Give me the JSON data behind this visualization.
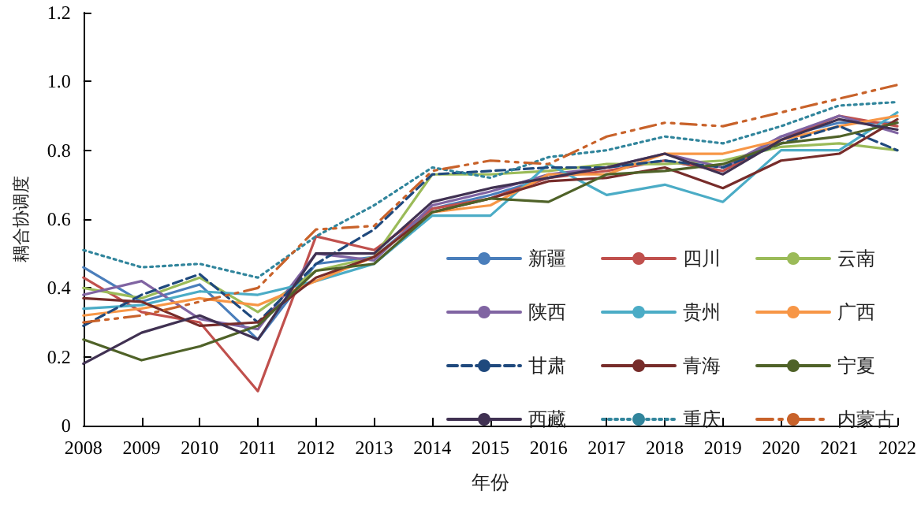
{
  "chart_data": {
    "type": "line",
    "xlabel": "年份",
    "ylabel": "耦合协调度",
    "categories": [
      "2008",
      "2009",
      "2010",
      "2011",
      "2012",
      "2013",
      "2014",
      "2015",
      "2016",
      "2017",
      "2018",
      "2019",
      "2020",
      "2021",
      "2022"
    ],
    "ylim": [
      0,
      1.2
    ],
    "yticks": [
      0,
      0.2,
      0.4,
      0.6,
      0.8,
      {
        "value": 1,
        "label": "1.0"
      },
      1.2
    ],
    "grid": false,
    "legend": "bottom right",
    "marker": "none",
    "series": [
      {
        "name": "新疆",
        "color": "#4a7ebb",
        "line_style": "solid",
        "values": [
          0.46,
          0.36,
          0.41,
          0.25,
          0.47,
          0.49,
          0.63,
          0.67,
          0.72,
          0.75,
          0.77,
          0.74,
          0.84,
          0.88,
          0.88
        ]
      },
      {
        "name": "四川",
        "color": "#c0504d",
        "line_style": "solid",
        "values": [
          0.43,
          0.33,
          0.3,
          0.1,
          0.55,
          0.51,
          0.63,
          0.66,
          0.72,
          0.74,
          0.77,
          0.74,
          0.83,
          0.9,
          0.87
        ]
      },
      {
        "name": "云南",
        "color": "#9bbb59",
        "line_style": "solid",
        "values": [
          0.4,
          0.37,
          0.43,
          0.33,
          0.45,
          0.49,
          0.73,
          0.73,
          0.74,
          0.76,
          0.76,
          0.77,
          0.81,
          0.82,
          0.8
        ]
      },
      {
        "name": "陕西",
        "color": "#8064a2",
        "line_style": "solid",
        "values": [
          0.38,
          0.42,
          0.31,
          0.28,
          0.5,
          0.48,
          0.64,
          0.68,
          0.73,
          0.75,
          0.79,
          0.75,
          0.84,
          0.9,
          0.85
        ]
      },
      {
        "name": "贵州",
        "color": "#4bacc6",
        "line_style": "solid",
        "values": [
          0.34,
          0.35,
          0.39,
          0.38,
          0.42,
          0.47,
          0.61,
          0.61,
          0.76,
          0.67,
          0.7,
          0.65,
          0.8,
          0.8,
          0.91
        ]
      },
      {
        "name": "广西",
        "color": "#f79646",
        "line_style": "solid",
        "values": [
          0.32,
          0.34,
          0.37,
          0.35,
          0.42,
          0.49,
          0.62,
          0.64,
          0.73,
          0.73,
          0.79,
          0.79,
          0.83,
          0.87,
          0.9
        ]
      },
      {
        "name": "甘肃",
        "color": "#1f497d",
        "line_style": "dashed",
        "values": [
          0.29,
          0.38,
          0.44,
          0.3,
          0.47,
          0.57,
          0.73,
          0.74,
          0.75,
          0.75,
          0.77,
          0.75,
          0.82,
          0.87,
          0.8
        ]
      },
      {
        "name": "青海",
        "color": "#772c2a",
        "line_style": "solid",
        "values": [
          0.37,
          0.36,
          0.29,
          0.3,
          0.43,
          0.49,
          0.62,
          0.66,
          0.71,
          0.72,
          0.75,
          0.69,
          0.77,
          0.79,
          0.89
        ]
      },
      {
        "name": "宁夏",
        "color": "#4f6228",
        "line_style": "solid",
        "values": [
          0.25,
          0.19,
          0.23,
          0.29,
          0.45,
          0.47,
          0.62,
          0.66,
          0.65,
          0.73,
          0.74,
          0.76,
          0.82,
          0.84,
          0.88
        ]
      },
      {
        "name": "西藏",
        "color": "#403152",
        "line_style": "solid",
        "values": [
          0.18,
          0.27,
          0.32,
          0.25,
          0.5,
          0.5,
          0.65,
          0.69,
          0.72,
          0.75,
          0.79,
          0.73,
          0.83,
          0.89,
          0.86
        ]
      },
      {
        "name": "重庆",
        "color": "#31859c",
        "line_style": "dotted",
        "values": [
          0.51,
          0.46,
          0.47,
          0.43,
          0.55,
          0.64,
          0.75,
          0.72,
          0.78,
          0.8,
          0.84,
          0.82,
          0.87,
          0.93,
          0.94
        ]
      },
      {
        "name": "内蒙古",
        "color": "#c8622a",
        "line_style": "dashdot",
        "values": [
          0.3,
          0.32,
          0.36,
          0.4,
          0.57,
          0.58,
          0.74,
          0.77,
          0.76,
          0.84,
          0.88,
          0.87,
          0.91,
          0.95,
          0.99
        ]
      }
    ]
  }
}
